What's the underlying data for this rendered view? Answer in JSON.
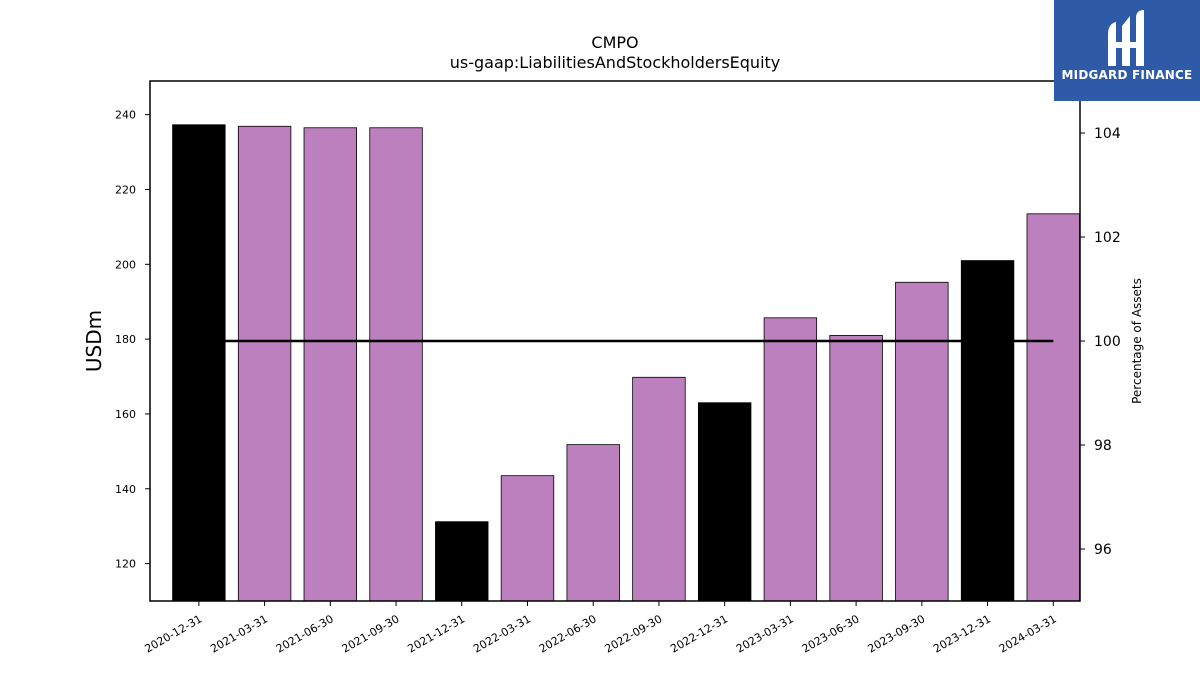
{
  "chart_data": {
    "type": "bar",
    "title": "CMPO",
    "subtitle": "us-gaap:LiabilitiesAndStockholdersEquity",
    "ylabel": "USDm",
    "y2label": "Percentage of Assets",
    "ylim": [
      110,
      249
    ],
    "y2lim": [
      95.0,
      105.0
    ],
    "yticks": [
      120,
      140,
      160,
      180,
      200,
      220,
      240
    ],
    "y2ticks": [
      96,
      98,
      100,
      102,
      104
    ],
    "categories": [
      "2020-12-31",
      "2021-03-31",
      "2021-06-30",
      "2021-09-30",
      "2021-12-31",
      "2022-03-31",
      "2022-06-30",
      "2022-09-30",
      "2022-12-31",
      "2023-03-31",
      "2023-06-30",
      "2023-09-30",
      "2023-12-31",
      "2024-03-31"
    ],
    "values": [
      237.3,
      236.9,
      236.5,
      236.5,
      131.2,
      143.5,
      151.8,
      169.8,
      163.0,
      185.7,
      181.0,
      195.2,
      201.0,
      213.5
    ],
    "bar_colors": [
      "#000000",
      "#bb80bd",
      "#bb80bd",
      "#bb80bd",
      "#000000",
      "#bb80bd",
      "#bb80bd",
      "#bb80bd",
      "#000000",
      "#bb80bd",
      "#bb80bd",
      "#bb80bd",
      "#000000",
      "#bb80bd"
    ],
    "line": {
      "axis": "right",
      "values": [
        100,
        100,
        100,
        100,
        100,
        100,
        100,
        100,
        100,
        100,
        100,
        100,
        100,
        100
      ],
      "color": "#000000"
    },
    "grid": false,
    "legend": "none"
  },
  "logo": {
    "text": "MIDGARD FINANCE",
    "bg": "#2e5aa8"
  }
}
